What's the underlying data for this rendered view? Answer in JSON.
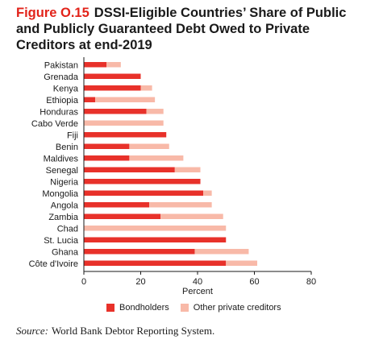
{
  "figure": {
    "label": "Figure O.15",
    "title": "DSSI-Eligible Countries’ Share of Public and Publicly Guaranteed Debt Owed to Private Creditors at end-2019"
  },
  "source": {
    "label": "Source:",
    "text": "World Bank Debtor Reporting System."
  },
  "colors": {
    "bondholders": "#e8312a",
    "other_private": "#f8b9a8",
    "axis": "#1a1a1a"
  },
  "chart_data": {
    "type": "bar",
    "orientation": "horizontal",
    "stacked": true,
    "categories": [
      "Pakistan",
      "Grenada",
      "Kenya",
      "Ethiopia",
      "Honduras",
      "Cabo Verde",
      "Fiji",
      "Benin",
      "Maldives",
      "Senegal",
      "Nigeria",
      "Mongolia",
      "Angola",
      "Zambia",
      "Chad",
      "St. Lucia",
      "Ghana",
      "Côte d'Ivoire"
    ],
    "series": [
      {
        "name": "Bondholders",
        "values": [
          8,
          20,
          20,
          4,
          22,
          0,
          29,
          16,
          16,
          32,
          41,
          42,
          23,
          27,
          0,
          50,
          39,
          50
        ]
      },
      {
        "name": "Other private creditors",
        "values": [
          5,
          0,
          4,
          21,
          6,
          28,
          0,
          14,
          19,
          9,
          0,
          3,
          22,
          22,
          50,
          0,
          19,
          11
        ]
      }
    ],
    "xlabel": "Percent",
    "xlim": [
      0,
      80
    ],
    "xticks": [
      0,
      20,
      40,
      60,
      80
    ],
    "grid": false,
    "legend": "bottom"
  }
}
